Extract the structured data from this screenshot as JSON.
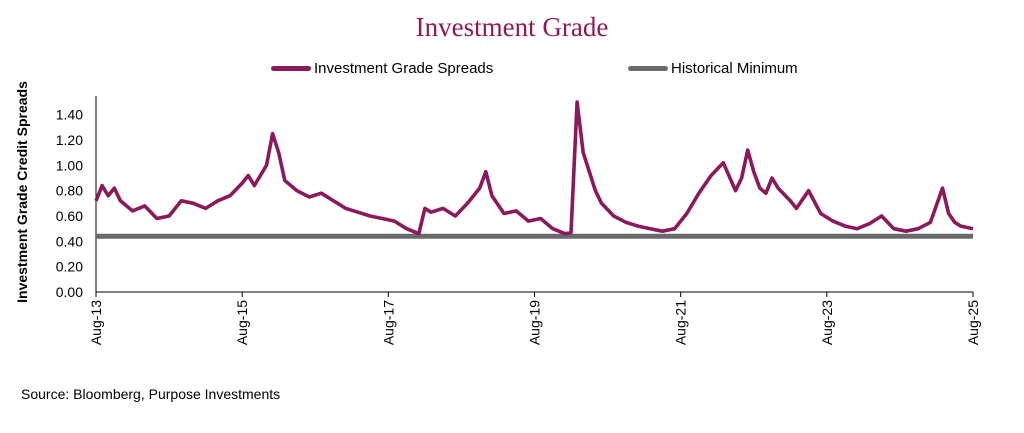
{
  "colors": {
    "title": "#8a1a5c",
    "series": "#8a1a5c",
    "minimum": "#6a6a6d",
    "text": "#000000"
  },
  "source": "Source: Bloomberg, Purpose Investments",
  "chart_data": {
    "type": "line",
    "title": "Investment Grade",
    "ylabel": "Investment Grade Credit Spreads",
    "xlabel": "",
    "ylim": [
      0,
      1.5
    ],
    "yticks": [
      "0.00",
      "0.20",
      "0.40",
      "0.60",
      "0.80",
      "1.00",
      "1.20",
      "1.40"
    ],
    "xlim": [
      "2013-08",
      "2025-08"
    ],
    "xticks": [
      {
        "date": "2013-08",
        "label": "Aug-13"
      },
      {
        "date": "2015-08",
        "label": "Aug-15"
      },
      {
        "date": "2017-08",
        "label": "Aug-17"
      },
      {
        "date": "2019-08",
        "label": "Aug-19"
      },
      {
        "date": "2021-08",
        "label": "Aug-21"
      },
      {
        "date": "2023-08",
        "label": "Aug-23"
      },
      {
        "date": "2025-08",
        "label": "Aug-25"
      }
    ],
    "grid": false,
    "legend_position": "top",
    "series": [
      {
        "name": "Investment Grade Spreads",
        "x": [
          "2013-08",
          "2013-09",
          "2013-10",
          "2013-11",
          "2013-12",
          "2014-02",
          "2014-04",
          "2014-06",
          "2014-08",
          "2014-10",
          "2014-12",
          "2015-02",
          "2015-04",
          "2015-06",
          "2015-08",
          "2015-09",
          "2015-10",
          "2015-12",
          "2016-01",
          "2016-02",
          "2016-03",
          "2016-05",
          "2016-07",
          "2016-09",
          "2016-11",
          "2017-01",
          "2017-03",
          "2017-05",
          "2017-07",
          "2017-09",
          "2017-11",
          "2018-01",
          "2018-02",
          "2018-03",
          "2018-05",
          "2018-07",
          "2018-09",
          "2018-11",
          "2018-12",
          "2019-01",
          "2019-03",
          "2019-05",
          "2019-07",
          "2019-09",
          "2019-11",
          "2020-01",
          "2020-02",
          "2020-03",
          "2020-04",
          "2020-05",
          "2020-06",
          "2020-07",
          "2020-09",
          "2020-11",
          "2021-01",
          "2021-03",
          "2021-05",
          "2021-07",
          "2021-09",
          "2021-11",
          "2022-01",
          "2022-03",
          "2022-05",
          "2022-06",
          "2022-07",
          "2022-08",
          "2022-09",
          "2022-10",
          "2022-11",
          "2022-12",
          "2023-02",
          "2023-03",
          "2023-05",
          "2023-07",
          "2023-09",
          "2023-11",
          "2024-01",
          "2024-03",
          "2024-05",
          "2024-07",
          "2024-09",
          "2024-11",
          "2025-01",
          "2025-03",
          "2025-04",
          "2025-05",
          "2025-06",
          "2025-08"
        ],
        "values": [
          0.72,
          0.84,
          0.76,
          0.82,
          0.72,
          0.64,
          0.68,
          0.58,
          0.6,
          0.72,
          0.7,
          0.66,
          0.72,
          0.76,
          0.86,
          0.92,
          0.84,
          1.0,
          1.25,
          1.1,
          0.88,
          0.8,
          0.75,
          0.78,
          0.72,
          0.66,
          0.63,
          0.6,
          0.58,
          0.56,
          0.5,
          0.46,
          0.66,
          0.63,
          0.66,
          0.6,
          0.7,
          0.82,
          0.95,
          0.76,
          0.62,
          0.64,
          0.56,
          0.58,
          0.5,
          0.46,
          0.47,
          1.5,
          1.1,
          0.95,
          0.8,
          0.7,
          0.6,
          0.55,
          0.52,
          0.5,
          0.48,
          0.5,
          0.62,
          0.78,
          0.92,
          1.02,
          0.8,
          0.9,
          1.12,
          0.95,
          0.82,
          0.78,
          0.9,
          0.82,
          0.72,
          0.66,
          0.8,
          0.62,
          0.56,
          0.52,
          0.5,
          0.54,
          0.6,
          0.5,
          0.48,
          0.5,
          0.55,
          0.82,
          0.62,
          0.55,
          0.52,
          0.5
        ]
      },
      {
        "name": "Historical Minimum",
        "x": [
          "2013-08",
          "2025-08"
        ],
        "values": [
          0.44,
          0.44
        ]
      }
    ]
  }
}
